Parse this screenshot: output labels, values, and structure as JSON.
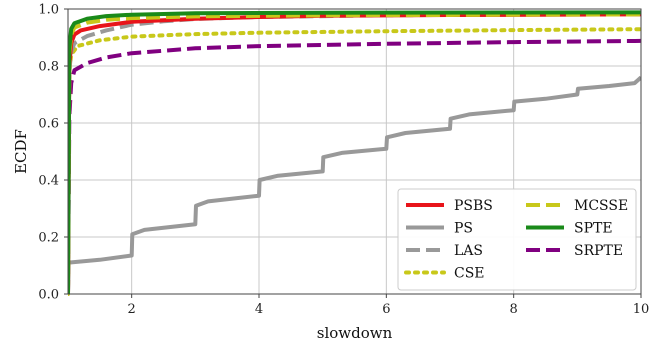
{
  "chart_data": {
    "type": "line",
    "title": "",
    "xlabel": "slowdown",
    "ylabel": "ECDF",
    "xlim": [
      1,
      10
    ],
    "ylim": [
      0,
      1
    ],
    "grid": true,
    "legend_position": "bottom-right",
    "x_ticks": [
      "2",
      "4",
      "6",
      "8",
      "10"
    ],
    "x_tick_values": [
      2,
      4,
      6,
      8,
      10
    ],
    "y_ticks": [
      "0.0",
      "0.2",
      "0.4",
      "0.6",
      "0.8",
      "1.0"
    ],
    "y_tick_values": [
      0,
      0.2,
      0.4,
      0.6,
      0.8,
      1.0
    ],
    "series": [
      {
        "name": "PSBS",
        "color": "#e8141a",
        "style": "solid",
        "points": [
          [
            1,
            0
          ],
          [
            1.02,
            0.8
          ],
          [
            1.05,
            0.88
          ],
          [
            1.1,
            0.91
          ],
          [
            1.2,
            0.925
          ],
          [
            1.5,
            0.94
          ],
          [
            2,
            0.955
          ],
          [
            3,
            0.966
          ],
          [
            4,
            0.972
          ],
          [
            5,
            0.976
          ],
          [
            7,
            0.979
          ],
          [
            10,
            0.981
          ]
        ]
      },
      {
        "name": "PS",
        "color": "#999999",
        "style": "solid",
        "points": [
          [
            1,
            0
          ],
          [
            1.01,
            0.11
          ],
          [
            1.5,
            0.12
          ],
          [
            2,
            0.135
          ],
          [
            2.01,
            0.21
          ],
          [
            2.2,
            0.225
          ],
          [
            3,
            0.245
          ],
          [
            3.01,
            0.31
          ],
          [
            3.2,
            0.325
          ],
          [
            4,
            0.345
          ],
          [
            4.01,
            0.4
          ],
          [
            4.3,
            0.415
          ],
          [
            5,
            0.43
          ],
          [
            5.01,
            0.48
          ],
          [
            5.3,
            0.495
          ],
          [
            6,
            0.51
          ],
          [
            6.01,
            0.55
          ],
          [
            6.3,
            0.565
          ],
          [
            7,
            0.58
          ],
          [
            7.01,
            0.615
          ],
          [
            7.3,
            0.63
          ],
          [
            8,
            0.645
          ],
          [
            8.01,
            0.675
          ],
          [
            8.5,
            0.685
          ],
          [
            9,
            0.7
          ],
          [
            9.01,
            0.72
          ],
          [
            9.5,
            0.73
          ],
          [
            9.9,
            0.74
          ],
          [
            10,
            0.76
          ]
        ]
      },
      {
        "name": "LAS",
        "color": "#999999",
        "style": "dashed",
        "points": [
          [
            1,
            0
          ],
          [
            1.02,
            0.78
          ],
          [
            1.05,
            0.85
          ],
          [
            1.1,
            0.88
          ],
          [
            1.3,
            0.905
          ],
          [
            1.6,
            0.925
          ],
          [
            2,
            0.945
          ],
          [
            2.5,
            0.957
          ],
          [
            3,
            0.965
          ],
          [
            4,
            0.972
          ],
          [
            6,
            0.978
          ],
          [
            10,
            0.983
          ]
        ]
      },
      {
        "name": "CSE",
        "color": "#c8c81a",
        "style": "dotted",
        "points": [
          [
            1,
            0
          ],
          [
            1.02,
            0.78
          ],
          [
            1.05,
            0.84
          ],
          [
            1.15,
            0.87
          ],
          [
            1.5,
            0.89
          ],
          [
            2,
            0.903
          ],
          [
            3,
            0.912
          ],
          [
            4,
            0.917
          ],
          [
            6,
            0.922
          ],
          [
            8,
            0.926
          ],
          [
            10,
            0.929
          ]
        ]
      },
      {
        "name": "MCSSE",
        "color": "#c8c81a",
        "style": "dashed",
        "points": [
          [
            1,
            0
          ],
          [
            1.02,
            0.84
          ],
          [
            1.05,
            0.91
          ],
          [
            1.1,
            0.935
          ],
          [
            1.3,
            0.952
          ],
          [
            1.6,
            0.962
          ],
          [
            2,
            0.968
          ],
          [
            3,
            0.974
          ],
          [
            5,
            0.978
          ],
          [
            10,
            0.981
          ]
        ]
      },
      {
        "name": "SPTE",
        "color": "#1a8a1a",
        "style": "solid",
        "points": [
          [
            1,
            0
          ],
          [
            1.02,
            0.86
          ],
          [
            1.05,
            0.93
          ],
          [
            1.1,
            0.95
          ],
          [
            1.3,
            0.966
          ],
          [
            1.6,
            0.975
          ],
          [
            2,
            0.98
          ],
          [
            3,
            0.985
          ],
          [
            5,
            0.987
          ],
          [
            10,
            0.988
          ]
        ]
      },
      {
        "name": "SRPTE",
        "color": "#800080",
        "style": "dashed",
        "points": [
          [
            1,
            0
          ],
          [
            1.02,
            0.62
          ],
          [
            1.05,
            0.74
          ],
          [
            1.1,
            0.785
          ],
          [
            1.3,
            0.81
          ],
          [
            1.6,
            0.83
          ],
          [
            2,
            0.845
          ],
          [
            3,
            0.862
          ],
          [
            4,
            0.87
          ],
          [
            6,
            0.878
          ],
          [
            8,
            0.884
          ],
          [
            10,
            0.888
          ]
        ]
      }
    ],
    "legend_columns": [
      [
        "PSBS",
        "PS",
        "LAS",
        "CSE"
      ],
      [
        "MCSSE",
        "SPTE",
        "SRPTE"
      ]
    ]
  }
}
